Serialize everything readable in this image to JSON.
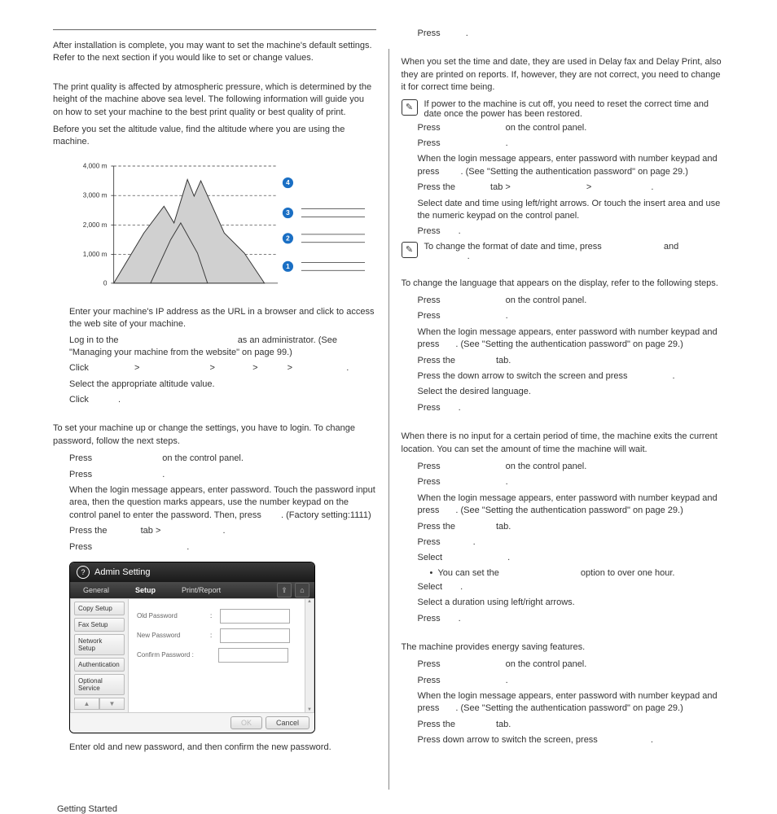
{
  "leftCol": {
    "intro1": "After installation is complete, you may want to set the machine's default settings. Refer to the next section if you would like to set or change values.",
    "intro2": "The print quality is affected by atmospheric pressure, which is determined by the height of the machine above sea level. The following information will guide you on how to set your machine to the best print quality or best quality of print.",
    "intro3": "Before you set the altitude value, find the altitude where you are using the machine.",
    "chart": {
      "yLabels": [
        "4,000 m",
        "3,000 m",
        "2,000 m",
        "1,000 m",
        "0"
      ],
      "badges": [
        "4",
        "3",
        "2",
        "1"
      ],
      "badgeColor": "#1a6fc4",
      "lineColor": "#333",
      "mountainFill": "#d0d0d0",
      "mountainStroke": "#333"
    },
    "altSteps": {
      "s1": "Enter your machine's IP address as the URL in a browser and click to access the web site of your machine.",
      "s2a": "Log in to the",
      "s2b": "as an administrator. (See \"Managing your machine from the website\" on page 99.)",
      "s3a": "Click",
      "s3gt": ">",
      "s3dot": ".",
      "s4": "Select the appropriate altitude value.",
      "s5a": "Click",
      "s5b": "."
    },
    "pwIntro": "To set your machine up or change the settings, you have to login. To change password, follow the next steps.",
    "pwSteps": {
      "s1a": "Press",
      "s1b": "on the control panel.",
      "s2a": "Press",
      "s2b": ".",
      "s3a": "When the login message appears, enter password. Touch the password input area, then the question marks appears, use the number keypad on the control panel to enter the password. Then, press",
      "s3b": ". (Factory setting:1111)",
      "s4a": "Press the",
      "s4b": "tab >",
      "s4c": ".",
      "s5a": "Press",
      "s5b": "."
    },
    "screenshot": {
      "title": "Admin Setting",
      "tabs": [
        "General",
        "Setup",
        "Print/Report"
      ],
      "side": [
        "Copy Setup",
        "Fax Setup",
        "Network Setup",
        "Authentication",
        "Optional Service"
      ],
      "fields": [
        "Old Password",
        "New Password",
        "Confirm Password :"
      ],
      "btnOk": "OK",
      "btnCancel": "Cancel"
    },
    "pwAfter": "Enter old and new password, and then confirm the new password."
  },
  "rightCol": {
    "topStep": {
      "a": "Press",
      "b": "."
    },
    "dateIntro": "When you set the time and date, they are used in Delay fax and Delay Print, also they are printed on reports. If, however, they are not correct, you need to change it for correct time being.",
    "note1": "If power to the machine is cut off, you need to reset the correct time and date once the power has been restored.",
    "dateSteps": {
      "s1a": "Press",
      "s1b": "on the control panel.",
      "s2a": "Press",
      "s2b": ".",
      "s3a": "When the login message appears, enter password with number keypad and press",
      "s3b": ". (See \"Setting the authentication password\" on page 29.)",
      "s4a": "Press the",
      "s4b": "tab >",
      "s4c": ">",
      "s4d": ".",
      "s5": "Select date and time using left/right arrows. Or touch the insert area and use the numeric keypad on the control panel.",
      "s6a": "Press",
      "s6b": "."
    },
    "note2a": "To change the format of date and time, press",
    "note2b": "and",
    "note2c": ".",
    "langIntro": "To change the language that appears on the display, refer to the following steps.",
    "langSteps": {
      "s1a": "Press",
      "s1b": "on the control panel.",
      "s2a": "Press",
      "s2b": ".",
      "s3a": "When the login message appears, enter password with number keypad and press",
      "s3b": ". (See \"Setting the authentication password\" on page 29.)",
      "s4a": "Press the",
      "s4b": "tab.",
      "s5a": "Press the down arrow to switch the screen and press",
      "s5b": ".",
      "s6": "Select the desired language.",
      "s7a": "Press",
      "s7b": "."
    },
    "timeoutIntro": "When there is no input for a certain period of time, the machine exits the current location. You can set the amount of time the machine will wait.",
    "timeoutSteps": {
      "s1a": "Press",
      "s1b": "on the control panel.",
      "s2a": "Press",
      "s2b": ".",
      "s3a": "When the login message appears, enter password with number keypad and press",
      "s3b": ". (See \"Setting the authentication password\" on page 29.)",
      "s4a": "Press the",
      "s4b": "tab.",
      "s5a": "Press",
      "s5b": ".",
      "s6a": "Select",
      "s6b": ".",
      "s6sub_a": "You can set the",
      "s6sub_b": "option to over one hour.",
      "s7a": "Select",
      "s7b": ".",
      "s8": "Select a duration using left/right arrows.",
      "s9a": "Press",
      "s9b": "."
    },
    "energyIntro": "The machine provides energy saving features.",
    "energySteps": {
      "s1a": "Press",
      "s1b": "on the control panel.",
      "s2a": "Press",
      "s2b": ".",
      "s3a": "When the login message appears, enter password with number keypad and press",
      "s3b": ". (See \"Setting the authentication password\" on page 29.)",
      "s4a": "Press the",
      "s4b": "tab.",
      "s5a": "Press down arrow to switch the screen, press",
      "s5b": "."
    }
  },
  "footer": "Getting Started"
}
